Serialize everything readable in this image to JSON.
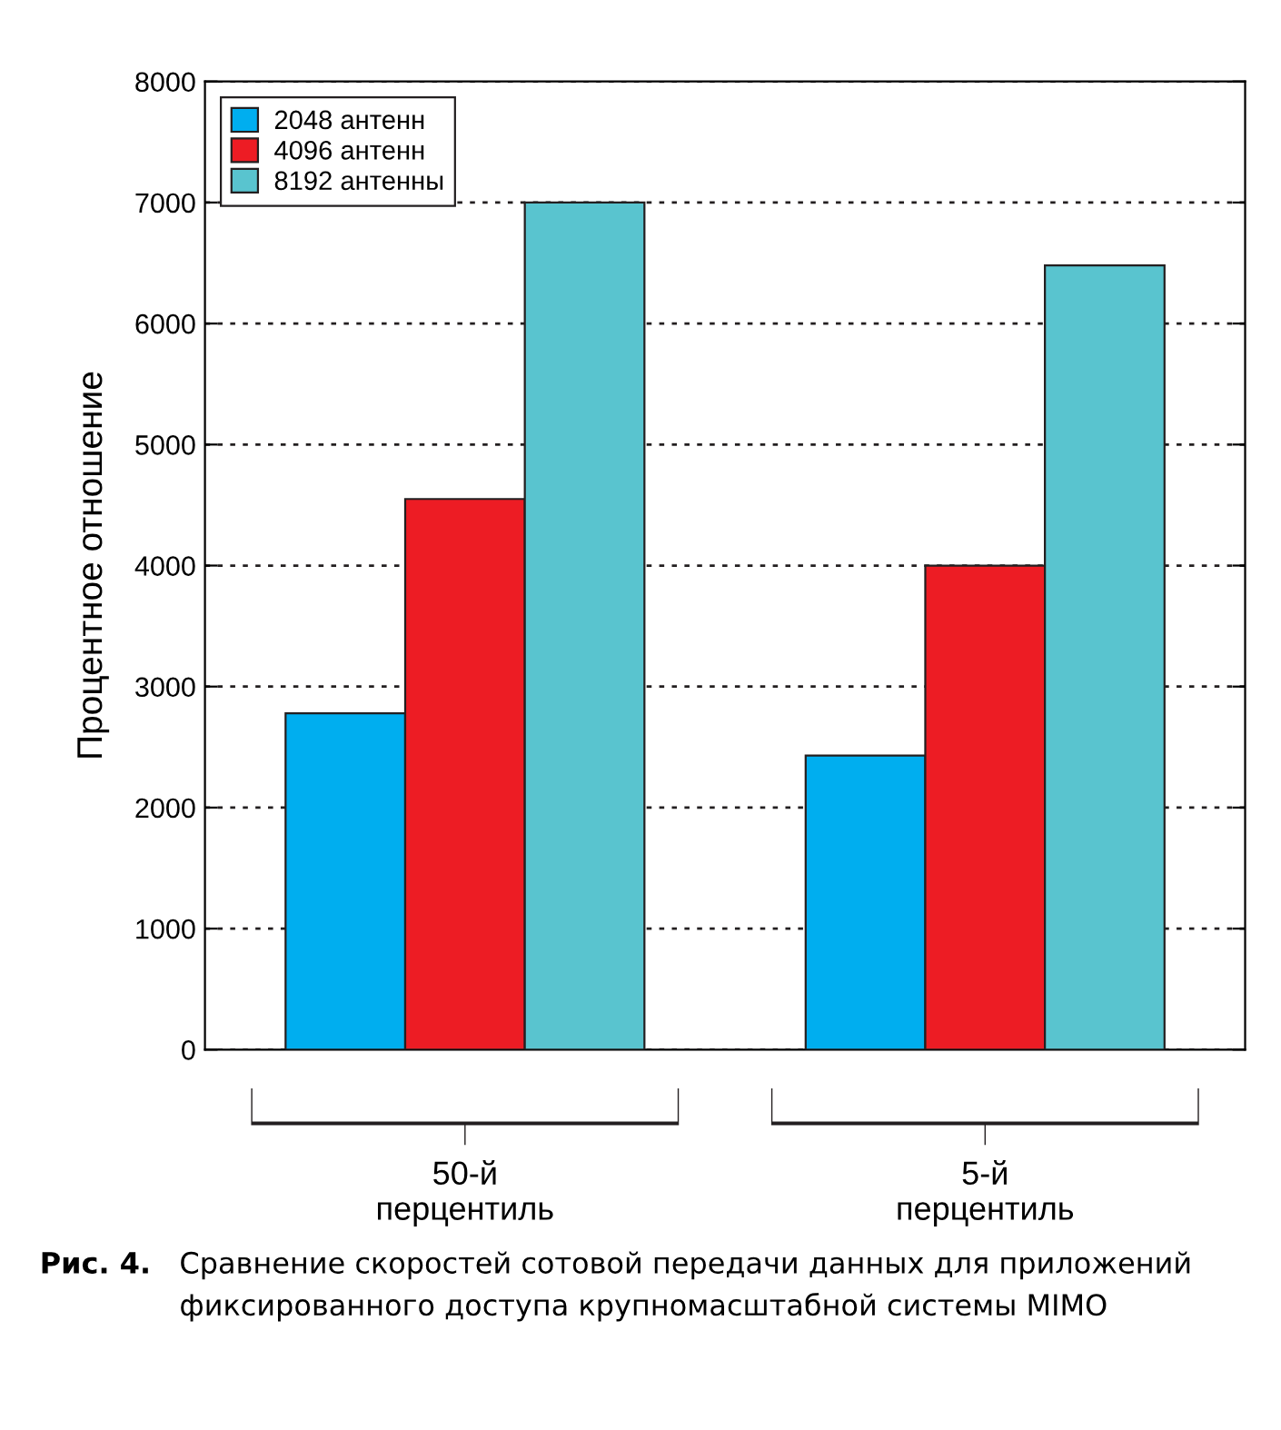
{
  "chart_data": {
    "type": "bar",
    "ylabel": "Процентное отношение",
    "categories": [
      "50-й\nперцентиль",
      "5-й\nперцентиль"
    ],
    "series": [
      {
        "name": "2048 антенн",
        "color": "#00aeef",
        "values": [
          2780,
          2430
        ]
      },
      {
        "name": "4096 антенн",
        "color": "#ed1c24",
        "values": [
          4550,
          4000
        ]
      },
      {
        "name": "8192 антенны",
        "color": "#59c4cf",
        "values": [
          7000,
          6480
        ]
      }
    ],
    "ylim": [
      0,
      8000
    ],
    "yticks": [
      0,
      1000,
      2000,
      3000,
      4000,
      5000,
      6000,
      7000,
      8000
    ],
    "grid": "y",
    "legend": "top left",
    "annotations": [
      "Рис. 4.",
      "Сравнение скоростей сотовой передачи данных для приложений\nфиксированного доступа крупномасштабной системы MIMO"
    ]
  }
}
